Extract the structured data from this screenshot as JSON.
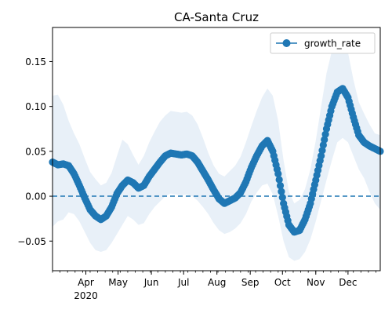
{
  "chart_data": {
    "type": "line",
    "title": "CA-Santa Cruz",
    "xlabel": "",
    "ylabel": "",
    "x_domain": [
      "2020-03-01",
      "2020-12-31"
    ],
    "ylim": [
      -0.083,
      0.188
    ],
    "month_ticks": [
      {
        "date": "2020-04-01",
        "label": "Apr",
        "year": "2020"
      },
      {
        "date": "2020-05-01",
        "label": "May"
      },
      {
        "date": "2020-06-01",
        "label": "Jun"
      },
      {
        "date": "2020-07-01",
        "label": "Jul"
      },
      {
        "date": "2020-08-01",
        "label": "Aug"
      },
      {
        "date": "2020-09-01",
        "label": "Sep"
      },
      {
        "date": "2020-10-01",
        "label": "Oct"
      },
      {
        "date": "2020-11-01",
        "label": "Nov"
      },
      {
        "date": "2020-12-01",
        "label": "Dec"
      }
    ],
    "y_ticks": [
      -0.05,
      0.0,
      0.05,
      0.1,
      0.15
    ],
    "y_tick_labels": [
      "−0.05",
      "0.00",
      "0.05",
      "0.10",
      "0.15"
    ],
    "reference_line": {
      "y": 0,
      "style": "dashed",
      "color": "#1f77b4"
    },
    "legend": {
      "position": "top-right",
      "entries": [
        "growth_rate"
      ]
    },
    "series": [
      {
        "name": "growth_rate",
        "color": "#1f77b4",
        "marker": "circle",
        "points": [
          [
            "2020-03-01",
            0.038
          ],
          [
            "2020-03-06",
            0.035
          ],
          [
            "2020-03-11",
            0.036
          ],
          [
            "2020-03-16",
            0.034
          ],
          [
            "2020-03-21",
            0.025
          ],
          [
            "2020-03-26",
            0.012
          ],
          [
            "2020-03-31",
            -0.002
          ],
          [
            "2020-04-05",
            -0.015
          ],
          [
            "2020-04-10",
            -0.022
          ],
          [
            "2020-04-15",
            -0.026
          ],
          [
            "2020-04-20",
            -0.022
          ],
          [
            "2020-04-25",
            -0.012
          ],
          [
            "2020-04-30",
            0.003
          ],
          [
            "2020-05-05",
            0.012
          ],
          [
            "2020-05-10",
            0.018
          ],
          [
            "2020-05-15",
            0.015
          ],
          [
            "2020-05-20",
            0.009
          ],
          [
            "2020-05-25",
            0.012
          ],
          [
            "2020-05-30",
            0.022
          ],
          [
            "2020-06-04",
            0.03
          ],
          [
            "2020-06-09",
            0.038
          ],
          [
            "2020-06-14",
            0.045
          ],
          [
            "2020-06-19",
            0.048
          ],
          [
            "2020-06-24",
            0.047
          ],
          [
            "2020-06-29",
            0.046
          ],
          [
            "2020-07-04",
            0.047
          ],
          [
            "2020-07-09",
            0.045
          ],
          [
            "2020-07-14",
            0.038
          ],
          [
            "2020-07-19",
            0.028
          ],
          [
            "2020-07-24",
            0.018
          ],
          [
            "2020-07-29",
            0.007
          ],
          [
            "2020-08-03",
            -0.003
          ],
          [
            "2020-08-08",
            -0.008
          ],
          [
            "2020-08-13",
            -0.005
          ],
          [
            "2020-08-18",
            -0.002
          ],
          [
            "2020-08-23",
            0.004
          ],
          [
            "2020-08-28",
            0.016
          ],
          [
            "2020-09-02",
            0.032
          ],
          [
            "2020-09-07",
            0.045
          ],
          [
            "2020-09-12",
            0.056
          ],
          [
            "2020-09-17",
            0.062
          ],
          [
            "2020-09-22",
            0.05
          ],
          [
            "2020-09-27",
            0.025
          ],
          [
            "2020-10-02",
            -0.008
          ],
          [
            "2020-10-07",
            -0.032
          ],
          [
            "2020-10-12",
            -0.04
          ],
          [
            "2020-10-17",
            -0.038
          ],
          [
            "2020-10-22",
            -0.026
          ],
          [
            "2020-10-27",
            -0.008
          ],
          [
            "2020-11-01",
            0.018
          ],
          [
            "2020-11-06",
            0.045
          ],
          [
            "2020-11-11",
            0.075
          ],
          [
            "2020-11-16",
            0.1
          ],
          [
            "2020-11-21",
            0.116
          ],
          [
            "2020-11-26",
            0.12
          ],
          [
            "2020-12-01",
            0.11
          ],
          [
            "2020-12-06",
            0.088
          ],
          [
            "2020-12-11",
            0.068
          ],
          [
            "2020-12-16",
            0.06
          ],
          [
            "2020-12-21",
            0.056
          ],
          [
            "2020-12-26",
            0.053
          ],
          [
            "2020-12-31",
            0.05
          ]
        ],
        "band": {
          "color": "#e8f0f8",
          "upper": [
            0.112,
            0.113,
            0.102,
            0.084,
            0.07,
            0.058,
            0.042,
            0.027,
            0.019,
            0.012,
            0.015,
            0.026,
            0.045,
            0.063,
            0.058,
            0.046,
            0.035,
            0.045,
            0.06,
            0.072,
            0.083,
            0.09,
            0.095,
            0.094,
            0.093,
            0.094,
            0.09,
            0.08,
            0.065,
            0.048,
            0.034,
            0.025,
            0.022,
            0.028,
            0.034,
            0.044,
            0.06,
            0.078,
            0.095,
            0.11,
            0.12,
            0.112,
            0.084,
            0.04,
            0.005,
            -0.008,
            -0.004,
            0.008,
            0.03,
            0.062,
            0.1,
            0.137,
            0.162,
            0.172,
            0.175,
            0.16,
            0.13,
            0.105,
            0.092,
            0.08,
            0.07,
            0.068
          ],
          "lower": [
            -0.034,
            -0.028,
            -0.026,
            -0.018,
            -0.02,
            -0.028,
            -0.04,
            -0.052,
            -0.06,
            -0.062,
            -0.06,
            -0.052,
            -0.042,
            -0.032,
            -0.022,
            -0.026,
            -0.032,
            -0.03,
            -0.02,
            -0.012,
            -0.006,
            0.0,
            0.003,
            0.002,
            0.001,
            0.002,
            0.0,
            -0.005,
            -0.012,
            -0.02,
            -0.03,
            -0.038,
            -0.042,
            -0.04,
            -0.036,
            -0.03,
            -0.02,
            -0.006,
            0.004,
            0.012,
            0.014,
            0.002,
            -0.022,
            -0.05,
            -0.068,
            -0.072,
            -0.07,
            -0.062,
            -0.048,
            -0.028,
            -0.005,
            0.018,
            0.04,
            0.06,
            0.065,
            0.06,
            0.045,
            0.03,
            0.02,
            0.005,
            -0.008,
            -0.015
          ]
        }
      }
    ]
  }
}
